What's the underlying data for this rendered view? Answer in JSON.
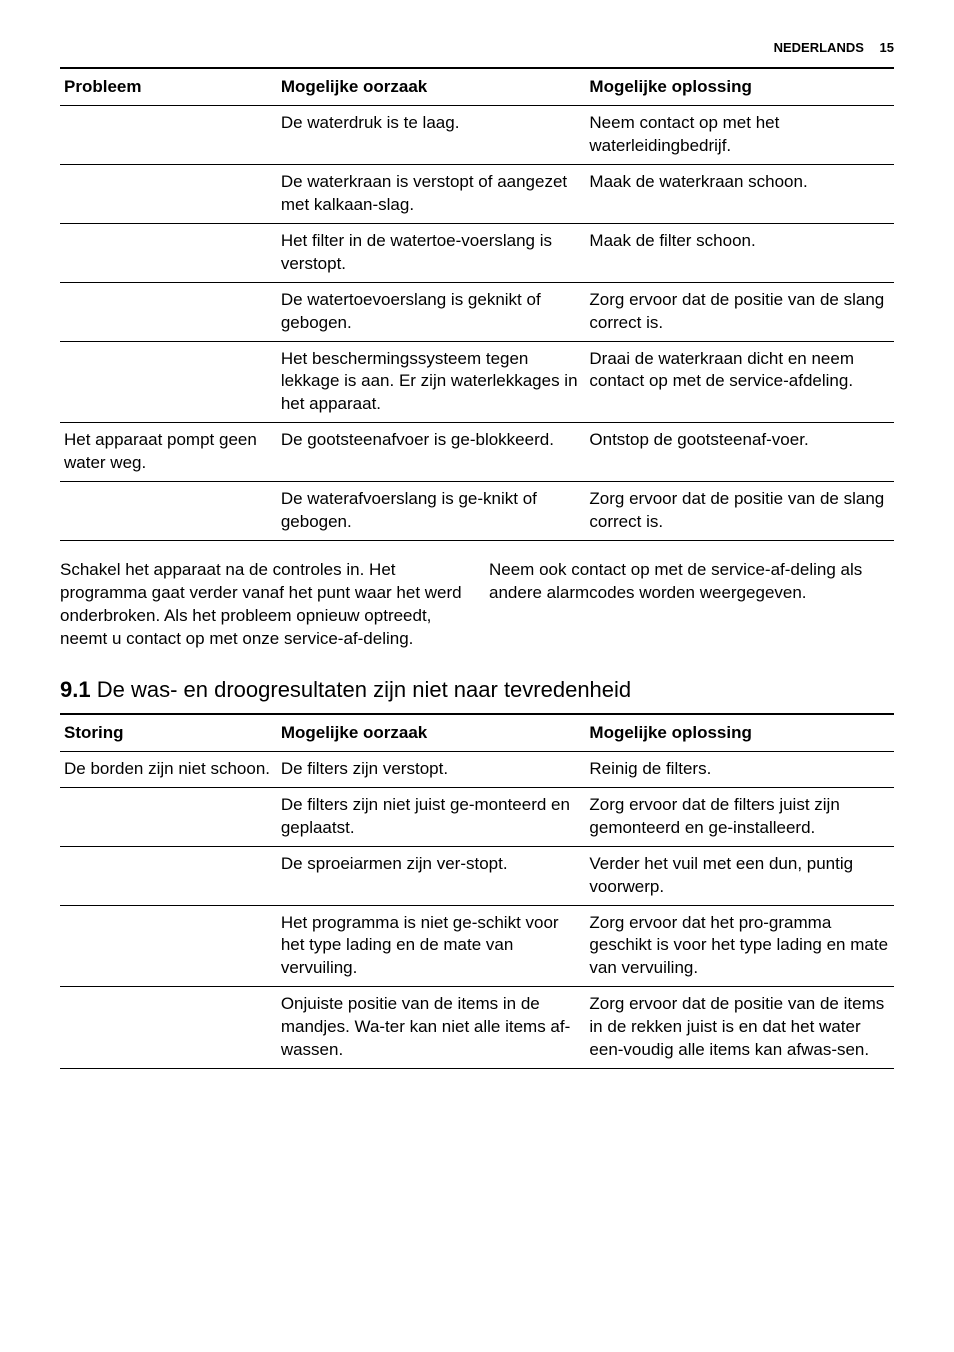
{
  "header": {
    "language": "NEDERLANDS",
    "page_number": "15"
  },
  "table1": {
    "columns": [
      "Probleem",
      "Mogelijke oorzaak",
      "Mogelijke oplossing"
    ],
    "rows": [
      [
        "",
        "De waterdruk is te laag.",
        "Neem contact op met het waterleidingbedrijf."
      ],
      [
        "",
        "De waterkraan is verstopt of aangezet met kalkaan-slag.",
        "Maak de waterkraan schoon."
      ],
      [
        "",
        "Het filter in de watertoe-voerslang is verstopt.",
        "Maak de filter schoon."
      ],
      [
        "",
        "De watertoevoerslang is geknikt of gebogen.",
        "Zorg ervoor dat de positie van de slang correct is."
      ],
      [
        "",
        "Het beschermingssysteem tegen lekkage is aan. Er zijn waterlekkages in het apparaat.",
        "Draai de waterkraan dicht en neem contact op met de service-afdeling."
      ],
      [
        "Het apparaat pompt geen water weg.",
        "De gootsteenafvoer is ge-blokkeerd.",
        "Ontstop de gootsteenaf-voer."
      ],
      [
        "",
        "De waterafvoerslang is ge-knikt of gebogen.",
        "Zorg ervoor dat de positie van de slang correct is."
      ]
    ]
  },
  "notes": {
    "left": "Schakel het apparaat na de controles in. Het programma gaat verder vanaf het punt waar het werd onderbroken. Als het probleem opnieuw optreedt, neemt u contact op met onze service-af-deling.",
    "right": "Neem ook contact op met de service-af-deling als andere alarmcodes worden weergegeven."
  },
  "section": {
    "number": "9.1",
    "title": "De was- en droogresultaten zijn niet naar tevredenheid"
  },
  "table2": {
    "columns": [
      "Storing",
      "Mogelijke oorzaak",
      "Mogelijke oplossing"
    ],
    "rows": [
      [
        "De borden zijn niet schoon.",
        "De filters zijn verstopt.",
        "Reinig de filters."
      ],
      [
        "",
        "De filters zijn niet juist ge-monteerd en geplaatst.",
        "Zorg ervoor dat de filters juist zijn gemonteerd en ge-installeerd."
      ],
      [
        "",
        "De sproeiarmen zijn ver-stopt.",
        "Verder het vuil met een dun, puntig voorwerp."
      ],
      [
        "",
        "Het programma is niet ge-schikt voor het type lading en de mate van vervuiling.",
        "Zorg ervoor dat het pro-gramma geschikt is voor het type lading en mate van vervuiling."
      ],
      [
        "",
        "Onjuiste positie van de items in de mandjes. Wa-ter kan niet alle items af-wassen.",
        "Zorg ervoor dat de positie van de items in de rekken juist is en dat het water een-voudig alle items kan afwas-sen."
      ]
    ]
  }
}
